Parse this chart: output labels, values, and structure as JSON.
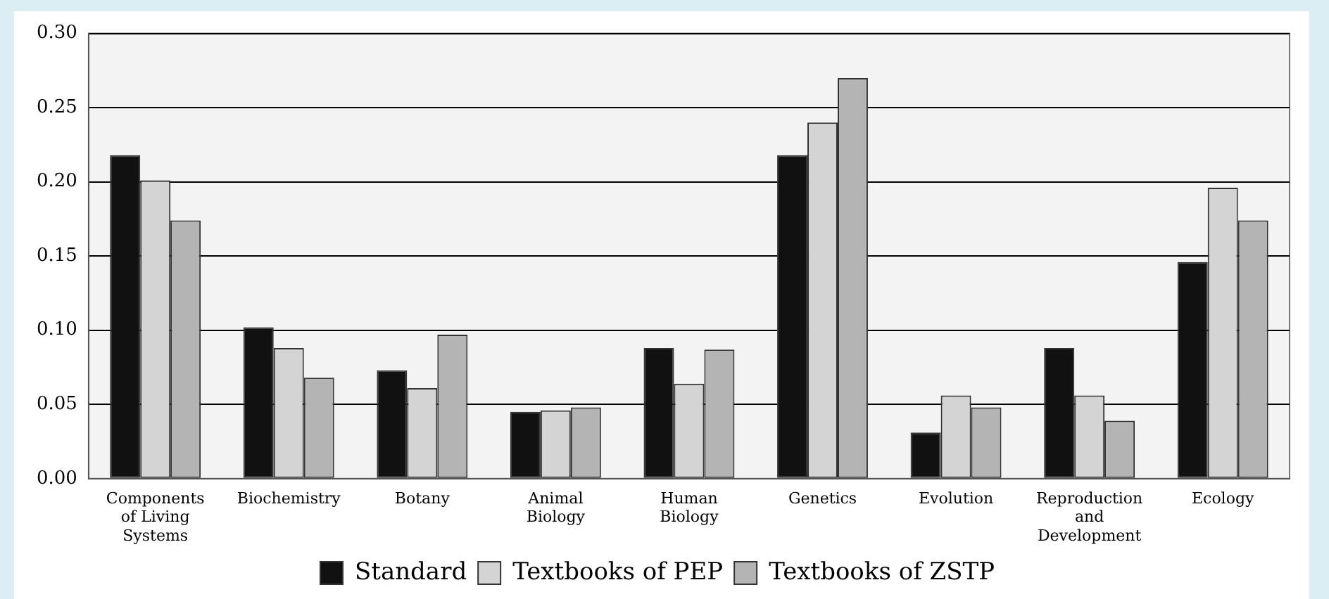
{
  "chart_data": {
    "type": "bar",
    "categories": [
      "Components of Living Systems",
      "Biochemistry",
      "Botany",
      "Animal Biology",
      "Human Biology",
      "Genetics",
      "Evolution",
      "Reproduction and Development",
      "Ecology"
    ],
    "series": [
      {
        "name": "Standard",
        "color": "#111111",
        "values": [
          0.218,
          0.102,
          0.073,
          0.045,
          0.088,
          0.218,
          0.031,
          0.088,
          0.146
        ]
      },
      {
        "name": "Textbooks of PEP",
        "color": "#d4d4d4",
        "values": [
          0.201,
          0.088,
          0.061,
          0.046,
          0.064,
          0.24,
          0.056,
          0.056,
          0.196
        ]
      },
      {
        "name": "Textbooks of ZSTP",
        "color": "#b4b4b4",
        "values": [
          0.174,
          0.068,
          0.097,
          0.048,
          0.087,
          0.27,
          0.048,
          0.039,
          0.174
        ]
      }
    ],
    "ylim": [
      0,
      0.3
    ],
    "yticks": [
      {
        "value": 0,
        "label": "0.00"
      },
      {
        "value": 0.05,
        "label": "0.05"
      },
      {
        "value": 0.1,
        "label": "0.10"
      },
      {
        "value": 0.15,
        "label": "0.15"
      },
      {
        "value": 0.2,
        "label": "0.20"
      },
      {
        "value": 0.25,
        "label": "0.25"
      },
      {
        "value": 0.3,
        "label": "0.30"
      }
    ],
    "grid": "y",
    "legend": "bottom"
  }
}
